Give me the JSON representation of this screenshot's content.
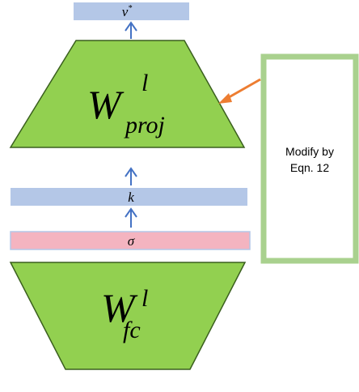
{
  "colors": {
    "green_fill": "#92d050",
    "green_stroke": "#3a5f1e",
    "blue_bar": "#b4c7e7",
    "pink_bar": "#f4b4c0",
    "arrow_blue": "#4472c4",
    "arrow_orange": "#ed7d31",
    "note_border": "#a9d18e"
  },
  "top_bar": {
    "label": "v",
    "superscript": "*"
  },
  "proj_block": {
    "symbol": "W",
    "superscript": "l",
    "subscript": "proj"
  },
  "k_bar": {
    "label": "k"
  },
  "sigma_bar": {
    "label": "σ"
  },
  "fc_block": {
    "symbol": "W",
    "superscript": "l",
    "subscript": "fc"
  },
  "note": {
    "line1": "Modify by",
    "line2": "Eqn. 12"
  }
}
